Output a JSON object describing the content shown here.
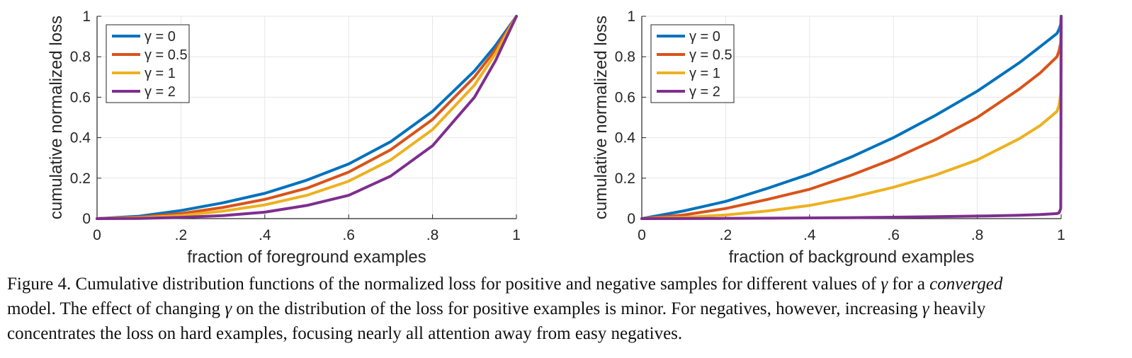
{
  "chart_data": [
    {
      "type": "line",
      "xlabel": "fraction of foreground examples",
      "ylabel": "cumulative normalized loss",
      "xlim": [
        0,
        1
      ],
      "ylim": [
        0,
        1
      ],
      "xticks": [
        "0",
        ".2",
        ".4",
        ".6",
        ".8",
        "1"
      ],
      "yticks": [
        "0",
        "0.2",
        "0.4",
        "0.6",
        "0.8",
        "1"
      ],
      "grid": true,
      "legend_position": "top-left",
      "x": [
        0,
        0.1,
        0.2,
        0.3,
        0.4,
        0.5,
        0.6,
        0.7,
        0.8,
        0.9,
        0.95,
        1.0
      ],
      "series": [
        {
          "name": "γ = 0",
          "color": "#0072BD",
          "values": [
            0,
            0.012,
            0.04,
            0.078,
            0.125,
            0.19,
            0.27,
            0.38,
            0.53,
            0.73,
            0.855,
            1.0
          ]
        },
        {
          "name": "γ = 0.5",
          "color": "#D95319",
          "values": [
            0,
            0.007,
            0.025,
            0.055,
            0.095,
            0.15,
            0.23,
            0.34,
            0.49,
            0.7,
            0.835,
            1.0
          ]
        },
        {
          "name": "γ = 1",
          "color": "#EDB120",
          "values": [
            0,
            0.004,
            0.015,
            0.037,
            0.068,
            0.115,
            0.185,
            0.29,
            0.44,
            0.66,
            0.815,
            1.0
          ]
        },
        {
          "name": "γ = 2",
          "color": "#7E2F8E",
          "values": [
            0,
            0.001,
            0.006,
            0.015,
            0.032,
            0.065,
            0.115,
            0.21,
            0.36,
            0.6,
            0.78,
            1.0
          ]
        }
      ]
    },
    {
      "type": "line",
      "xlabel": "fraction of background examples",
      "ylabel": "cumulative normalized loss",
      "xlim": [
        0,
        1
      ],
      "ylim": [
        0,
        1
      ],
      "xticks": [
        "0",
        ".2",
        ".4",
        ".6",
        ".8",
        "1"
      ],
      "yticks": [
        "0",
        "0.2",
        "0.4",
        "0.6",
        "0.8",
        "1"
      ],
      "grid": true,
      "legend_position": "top-left",
      "x": [
        0,
        0.1,
        0.2,
        0.3,
        0.4,
        0.5,
        0.6,
        0.7,
        0.8,
        0.9,
        0.95,
        0.99,
        0.995,
        0.999,
        1.0
      ],
      "series": [
        {
          "name": "γ = 0",
          "color": "#0072BD",
          "values": [
            0,
            0.038,
            0.085,
            0.15,
            0.22,
            0.305,
            0.4,
            0.51,
            0.63,
            0.77,
            0.85,
            0.915,
            0.935,
            0.96,
            1.0
          ]
        },
        {
          "name": "γ = 0.5",
          "color": "#D95319",
          "values": [
            0,
            0.018,
            0.05,
            0.095,
            0.145,
            0.215,
            0.295,
            0.39,
            0.5,
            0.64,
            0.72,
            0.8,
            0.83,
            0.87,
            1.0
          ]
        },
        {
          "name": "γ = 1",
          "color": "#EDB120",
          "values": [
            0,
            0.006,
            0.018,
            0.038,
            0.065,
            0.105,
            0.155,
            0.215,
            0.29,
            0.395,
            0.46,
            0.53,
            0.56,
            0.62,
            1.0
          ]
        },
        {
          "name": "γ = 2",
          "color": "#7E2F8E",
          "values": [
            0,
            0.0004,
            0.0012,
            0.0022,
            0.0035,
            0.005,
            0.007,
            0.0095,
            0.0125,
            0.0165,
            0.02,
            0.025,
            0.029,
            0.05,
            1.0
          ]
        }
      ]
    }
  ],
  "caption": {
    "line1_pre": "Figure 4. Cumulative distribution functions of the normalized loss for positive and negative samples for different values of ",
    "gamma": "γ",
    "line1_mid": " for a ",
    "converged": "converged",
    "line2_pre": "model. The effect of changing ",
    "line2_mid": " on the distribution of the loss for positive examples is minor. For negatives, however, increasing ",
    "line2_post": " heavily",
    "line3": "concentrates the loss on hard examples, focusing nearly all attention away from easy negatives."
  }
}
